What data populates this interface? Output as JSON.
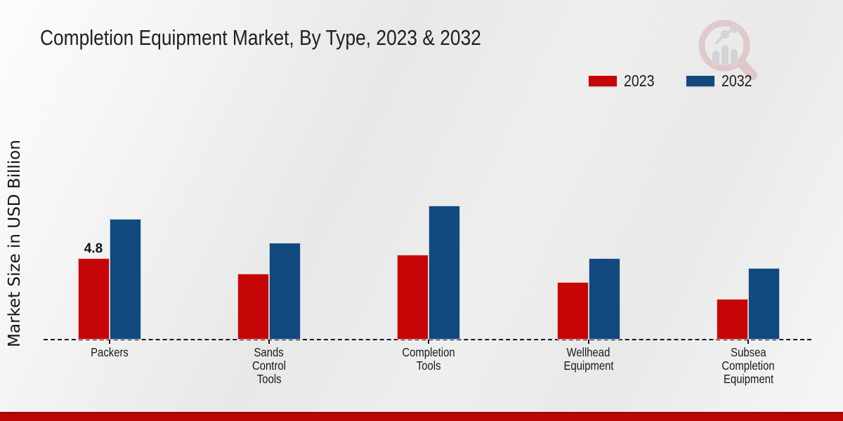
{
  "title": "Completion Equipment Market, By Type, 2023 & 2032",
  "ylabel": "Market Size in USD Billion",
  "legend": [
    {
      "label": "2023",
      "color": "#c60606"
    },
    {
      "label": "2032",
      "color": "#11497f"
    }
  ],
  "brand": {
    "bottom_bar_color": "#bb0606",
    "bottom_bar_edge_color": "#9e0404",
    "watermark_icon": "magnifier-bar-chart-logo",
    "watermark_pink": "#d9aeb2",
    "watermark_gray": "#c3c3c6"
  },
  "chart_data": {
    "type": "bar",
    "categories": [
      "Packers",
      "Sands Control Tools",
      "Completion Tools",
      "Wellhead Equipment",
      "Subsea Completion Equipment"
    ],
    "label_lines": [
      [
        "Packers"
      ],
      [
        "Sands",
        "Control",
        "Tools"
      ],
      [
        "Completion",
        "Tools"
      ],
      [
        "Wellhead",
        "Equipment"
      ],
      [
        "Subsea",
        "Completion",
        "Equipment"
      ]
    ],
    "series": [
      {
        "name": "2023",
        "color": "#c60606",
        "values": [
          4.8,
          3.9,
          5.0,
          3.4,
          2.4
        ]
      },
      {
        "name": "2032",
        "color": "#11497f",
        "values": [
          7.1,
          5.7,
          7.9,
          4.8,
          4.2
        ]
      }
    ],
    "data_labels": [
      {
        "series": "2023",
        "category": "Packers",
        "text": "4.8",
        "value": 4.8
      }
    ],
    "title": "Completion Equipment Market, By Type, 2023 & 2032",
    "xlabel": "",
    "ylabel": "Market Size in USD Billion",
    "ylim": [
      0,
      8.5
    ],
    "grid": false,
    "y_axis_ticks_visible": false,
    "baseline_style": "dashed",
    "legend_position": "top-right"
  }
}
